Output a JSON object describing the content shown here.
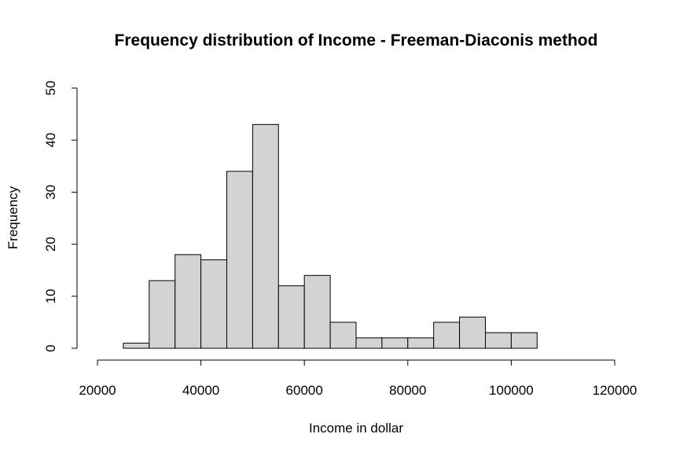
{
  "chart_data": {
    "type": "bar",
    "title": "Frequency distribution of Income - Freeman-Diaconis method",
    "xlabel": "Income in dollar",
    "ylabel": "Frequency",
    "xlim": [
      20000,
      120000
    ],
    "ylim": [
      0,
      50
    ],
    "x_ticks": [
      20000,
      40000,
      60000,
      80000,
      100000,
      120000
    ],
    "y_ticks": [
      0,
      10,
      20,
      30,
      40,
      50
    ],
    "bin_width": 5000,
    "bin_starts": [
      25000,
      30000,
      35000,
      40000,
      45000,
      50000,
      55000,
      60000,
      65000,
      70000,
      75000,
      80000,
      85000,
      90000,
      95000,
      100000
    ],
    "values": [
      1,
      13,
      18,
      17,
      34,
      43,
      12,
      14,
      5,
      2,
      2,
      2,
      5,
      6,
      3,
      3
    ],
    "colors": {
      "bar_fill": "#d3d3d3",
      "bar_stroke": "#000000"
    },
    "grid": false,
    "legend": "none"
  }
}
